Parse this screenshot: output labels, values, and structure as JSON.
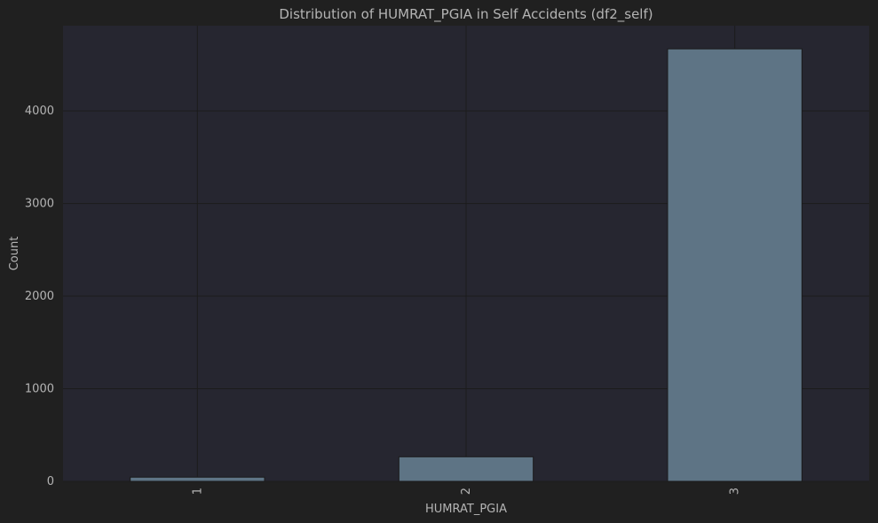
{
  "chart_data": {
    "type": "bar",
    "title": "Distribution of HUMRAT_PGIA in Self Accidents (df2_self)",
    "xlabel": "HUMRAT_PGIA",
    "ylabel": "Count",
    "categories": [
      "1",
      "2",
      "3"
    ],
    "values": [
      45,
      265,
      4670
    ],
    "ylim": [
      0,
      4920
    ],
    "yticks": [
      0,
      1000,
      2000,
      3000,
      4000
    ],
    "grid": true,
    "colors": {
      "background": "#202020",
      "plot_background": "#262630",
      "bar": "#5e7485",
      "bar_edge": "#1a1a1a",
      "grid": "#1c1c1c",
      "text": "#b4b4b4"
    }
  }
}
